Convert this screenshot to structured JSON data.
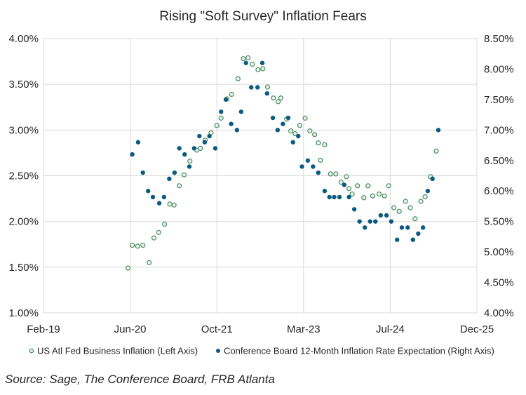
{
  "chart_data": {
    "type": "scatter",
    "title": "Rising \"Soft Survey\" Inflation Fears",
    "source": "Source: Sage, The Conference Board, FRB Atlanta",
    "xlabel": "",
    "x_ticks": [
      "Feb-19",
      "Jun-20",
      "Oct-21",
      "Mar-23",
      "Jul-24",
      "Dec-25"
    ],
    "x_range_months_since_feb19": [
      0,
      82
    ],
    "y_left": {
      "label": "",
      "range": [
        1.0,
        4.0
      ],
      "ticks": [
        "1.00%",
        "1.50%",
        "2.00%",
        "2.50%",
        "3.00%",
        "3.50%",
        "4.00%"
      ]
    },
    "y_right": {
      "label": "",
      "range": [
        4.0,
        8.5
      ],
      "ticks": [
        "4.00%",
        "4.50%",
        "5.00%",
        "5.50%",
        "6.00%",
        "6.50%",
        "7.00%",
        "7.50%",
        "8.00%",
        "8.50%"
      ]
    },
    "grid": true,
    "legend_position": "bottom",
    "series": [
      {
        "name": "US Atl Fed Business Inflation (Left Axis)",
        "axis": "left",
        "marker": "open-circle",
        "color": "#4e8c5e",
        "fill": "#e6f2ee",
        "points": [
          [
            16.0,
            1.49
          ],
          [
            16.8,
            1.74
          ],
          [
            17.8,
            1.73
          ],
          [
            18.8,
            1.74
          ],
          [
            20.0,
            1.55
          ],
          [
            20.9,
            1.82
          ],
          [
            21.8,
            1.88
          ],
          [
            22.9,
            1.97
          ],
          [
            23.9,
            2.19
          ],
          [
            24.7,
            2.18
          ],
          [
            25.7,
            2.39
          ],
          [
            26.6,
            2.51
          ],
          [
            27.7,
            2.66
          ],
          [
            29.0,
            2.78
          ],
          [
            29.7,
            2.8
          ],
          [
            30.6,
            2.89
          ],
          [
            31.7,
            2.97
          ],
          [
            32.8,
            3.05
          ],
          [
            33.6,
            3.13
          ],
          [
            34.7,
            3.34
          ],
          [
            35.6,
            3.39
          ],
          [
            36.8,
            3.56
          ],
          [
            37.8,
            3.78
          ],
          [
            38.7,
            3.79
          ],
          [
            39.5,
            3.72
          ],
          [
            40.6,
            3.66
          ],
          [
            41.5,
            3.67
          ],
          [
            42.4,
            3.47
          ],
          [
            43.5,
            3.35
          ],
          [
            44.4,
            3.31
          ],
          [
            44.9,
            3.35
          ],
          [
            46.0,
            3.12
          ],
          [
            46.8,
            2.99
          ],
          [
            47.6,
            2.96
          ],
          [
            48.5,
            3.05
          ],
          [
            49.5,
            3.13
          ],
          [
            50.4,
            2.99
          ],
          [
            51.3,
            2.95
          ],
          [
            52.0,
            2.86
          ],
          [
            52.4,
            2.67
          ],
          [
            53.2,
            2.84
          ],
          [
            54.3,
            2.52
          ],
          [
            55.3,
            2.52
          ],
          [
            56.3,
            2.43
          ],
          [
            57.3,
            2.49
          ],
          [
            57.8,
            2.36
          ],
          [
            58.4,
            2.3
          ],
          [
            59.4,
            2.39
          ],
          [
            60.6,
            2.26
          ],
          [
            61.4,
            2.39
          ],
          [
            62.3,
            2.28
          ],
          [
            63.5,
            2.3
          ],
          [
            64.5,
            2.28
          ],
          [
            65.3,
            2.39
          ],
          [
            66.3,
            2.15
          ],
          [
            67.3,
            2.11
          ],
          [
            68.5,
            2.22
          ],
          [
            69.4,
            2.15
          ],
          [
            70.3,
            2.03
          ],
          [
            71.4,
            2.22
          ],
          [
            72.2,
            2.27
          ],
          [
            73.2,
            2.49
          ],
          [
            74.3,
            2.77
          ]
        ]
      },
      {
        "name": "Conference Board 12-Month Inflation Rate Expectation (Right Axis)",
        "axis": "right",
        "marker": "filled-circle",
        "color": "#0b5a80",
        "points": [
          [
            16.8,
            6.6
          ],
          [
            17.9,
            6.8
          ],
          [
            18.8,
            6.3
          ],
          [
            19.8,
            6.0
          ],
          [
            20.7,
            5.9
          ],
          [
            21.9,
            5.8
          ],
          [
            22.8,
            5.9
          ],
          [
            23.8,
            6.2
          ],
          [
            24.8,
            6.3
          ],
          [
            25.7,
            6.7
          ],
          [
            26.7,
            6.6
          ],
          [
            27.6,
            6.4
          ],
          [
            28.5,
            6.7
          ],
          [
            29.5,
            6.9
          ],
          [
            30.5,
            6.8
          ],
          [
            31.4,
            6.9
          ],
          [
            32.5,
            6.7
          ],
          [
            33.6,
            7.3
          ],
          [
            34.5,
            7.5
          ],
          [
            35.5,
            7.1
          ],
          [
            36.6,
            7.0
          ],
          [
            37.4,
            7.3
          ],
          [
            38.3,
            8.1
          ],
          [
            39.3,
            7.7
          ],
          [
            40.5,
            7.7
          ],
          [
            41.4,
            8.1
          ],
          [
            42.3,
            7.6
          ],
          [
            43.4,
            7.2
          ],
          [
            44.3,
            7.0
          ],
          [
            45.3,
            7.1
          ],
          [
            46.3,
            7.2
          ],
          [
            47.2,
            6.8
          ],
          [
            48.2,
            6.9
          ],
          [
            48.9,
            6.4
          ],
          [
            50.0,
            6.5
          ],
          [
            51.0,
            6.4
          ],
          [
            52.0,
            6.3
          ],
          [
            53.2,
            6.0
          ],
          [
            54.1,
            5.9
          ],
          [
            55.0,
            5.9
          ],
          [
            56.0,
            5.9
          ],
          [
            56.9,
            6.1
          ],
          [
            57.8,
            5.9
          ],
          [
            58.8,
            5.7
          ],
          [
            59.8,
            5.5
          ],
          [
            60.8,
            5.4
          ],
          [
            61.8,
            5.5
          ],
          [
            62.8,
            5.5
          ],
          [
            63.8,
            5.6
          ],
          [
            64.9,
            5.6
          ],
          [
            65.8,
            5.5
          ],
          [
            66.9,
            5.2
          ],
          [
            67.8,
            5.4
          ],
          [
            68.9,
            5.4
          ],
          [
            69.9,
            5.2
          ],
          [
            70.9,
            5.3
          ],
          [
            71.8,
            5.4
          ],
          [
            72.7,
            6.0
          ],
          [
            73.6,
            6.2
          ],
          [
            74.7,
            7.0
          ]
        ]
      }
    ]
  }
}
